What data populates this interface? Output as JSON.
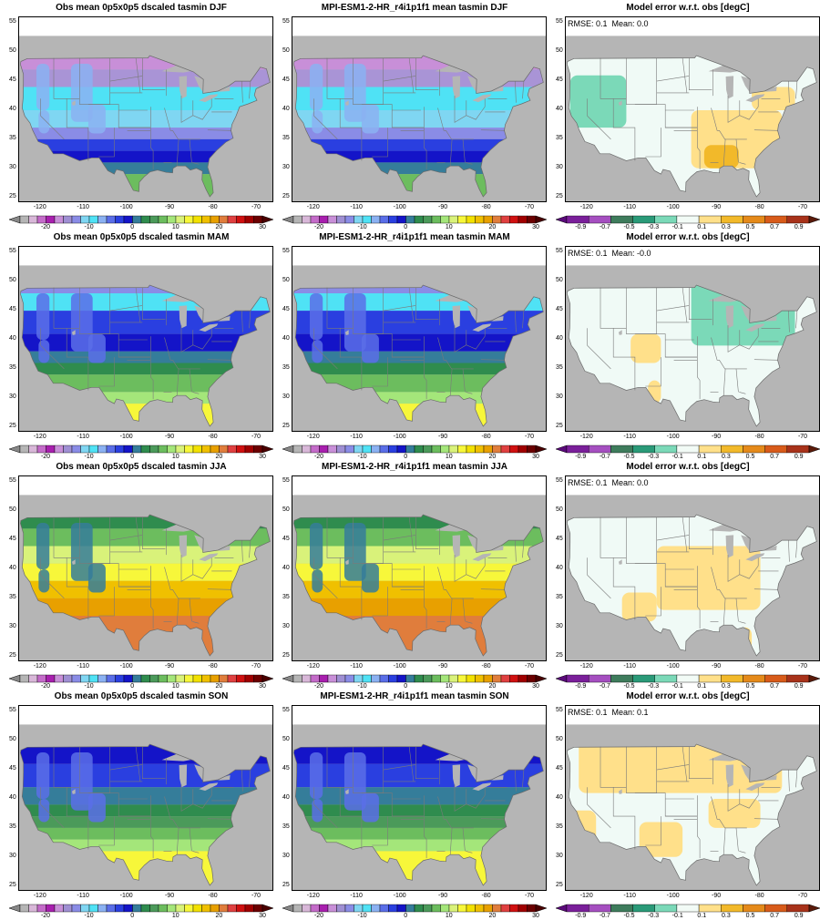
{
  "rows": [
    {
      "season": "DJF",
      "obs_title": "Obs mean 0p5x0p5 dscaled tasmin DJF",
      "model_title": "MPI-ESM1-2-HR_r4i1p1f1 mean tasmin DJF",
      "err_title": "Model error w.r.t. obs [degC]",
      "rmse": "RMSE: 0.1",
      "mean": "Mean: 0.0"
    },
    {
      "season": "MAM",
      "obs_title": "Obs mean 0p5x0p5 dscaled tasmin MAM",
      "model_title": "MPI-ESM1-2-HR_r4i1p1f1 mean tasmin MAM",
      "err_title": "Model error w.r.t. obs [degC]",
      "rmse": "RMSE: 0.1",
      "mean": "Mean: -0.0"
    },
    {
      "season": "JJA",
      "obs_title": "Obs mean 0p5x0p5 dscaled tasmin JJA",
      "model_title": "MPI-ESM1-2-HR_r4i1p1f1 mean tasmin JJA",
      "err_title": "Model error w.r.t. obs [degC]",
      "rmse": "RMSE: 0.1",
      "mean": "Mean: 0.0"
    },
    {
      "season": "SON",
      "obs_title": "Obs mean 0p5x0p5 dscaled tasmin SON",
      "model_title": "MPI-ESM1-2-HR_r4i1p1f1 mean tasmin SON",
      "err_title": "Model error w.r.t. obs [degC]",
      "rmse": "RMSE: 0.1",
      "mean": "Mean: 0.1"
    }
  ],
  "lat_ticks": [
    "55",
    "50",
    "45",
    "40",
    "35",
    "30",
    "25"
  ],
  "lon_ticks": [
    "-120",
    "-110",
    "-100",
    "-90",
    "-80",
    "-70"
  ],
  "temp_colorbar": {
    "labels": [
      "-20",
      "-10",
      "0",
      "10",
      "20",
      "30"
    ],
    "colors": [
      "#b5b5b5",
      "#d8b7d8",
      "#c46bc9",
      "#a81fae",
      "#c88fd8",
      "#9f8fd3",
      "#8a8ce6",
      "#7fd6f2",
      "#4fe2f5",
      "#8bb1f2",
      "#5a6ee8",
      "#2a3fe0",
      "#1414c8",
      "#357d9a",
      "#2f8c4e",
      "#4b9a5a",
      "#6cbd5e",
      "#a4e67a",
      "#d9f27a",
      "#f7f73a",
      "#f2e100",
      "#f0c000",
      "#e8a000",
      "#e07d3c",
      "#e04040",
      "#d01010",
      "#a00000",
      "#6b0000"
    ],
    "under": "#888888",
    "over": "#4a0000"
  },
  "err_colorbar": {
    "labels": [
      "-0.9",
      "-0.7",
      "-0.5",
      "-0.3",
      "-0.1",
      "0.1",
      "0.3",
      "0.5",
      "0.7",
      "0.9"
    ],
    "colors": [
      "#7a1f9a",
      "#a54fc0",
      "#3e7c5c",
      "#2a9a78",
      "#7bd9b8",
      "#f2fbf6",
      "#ffe08a",
      "#f2b92a",
      "#e58a1a",
      "#d85b1a",
      "#a8321a"
    ],
    "under": "#5a0a7a",
    "over": "#5a1a0a"
  },
  "colors": {
    "ocean": "#b5b5b5",
    "land_default": "#f0faf6",
    "border": "#7a7a7a",
    "frame": "#000000"
  }
}
